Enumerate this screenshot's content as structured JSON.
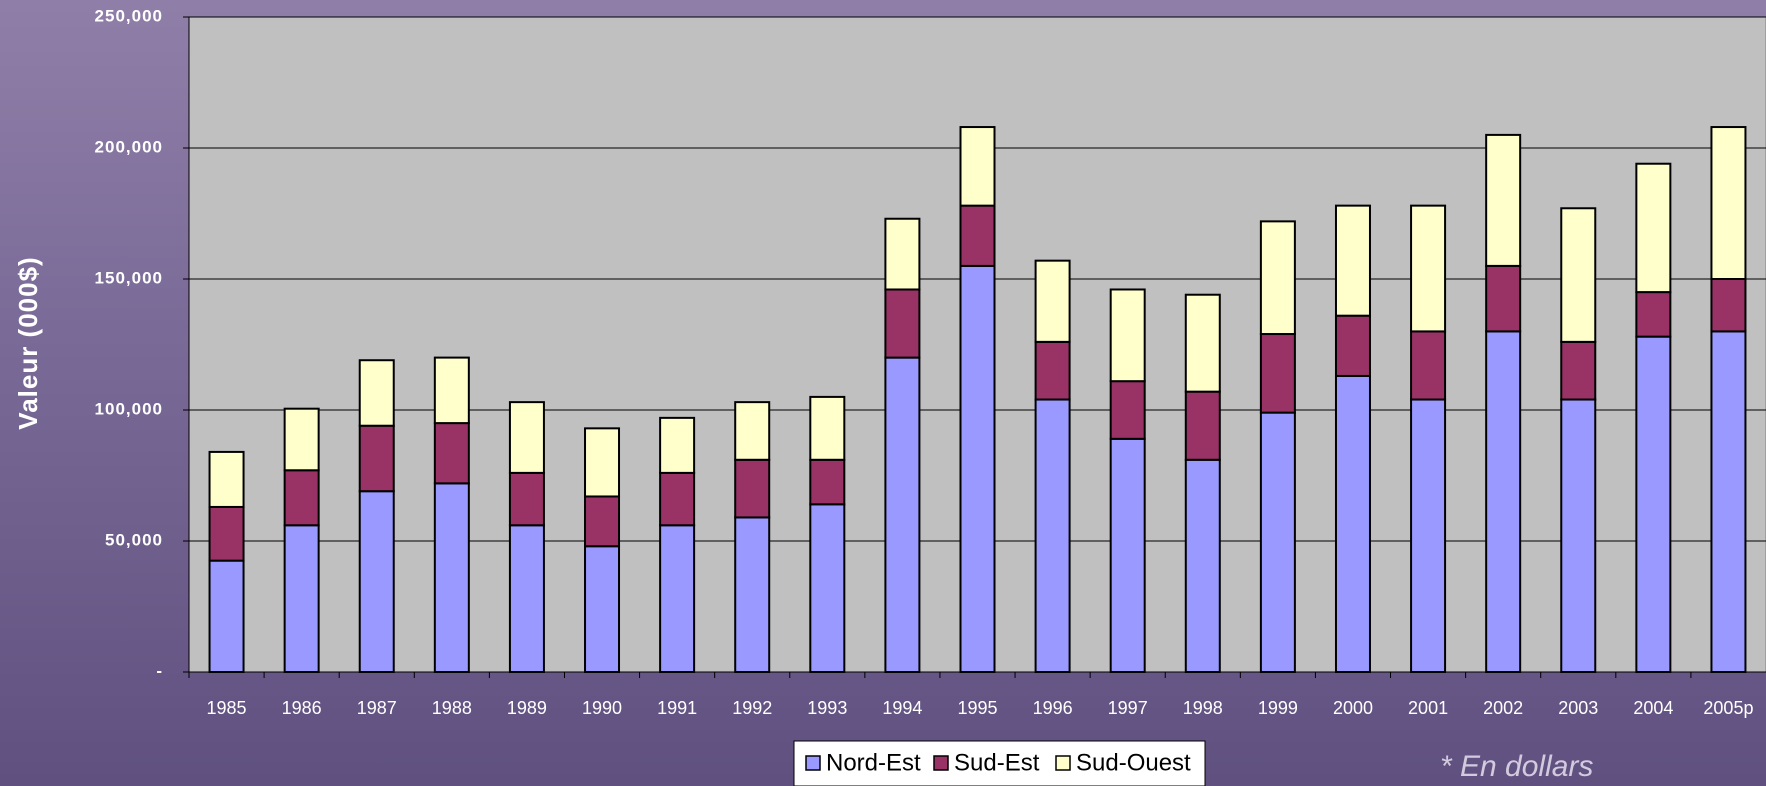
{
  "chart_data": {
    "type": "bar",
    "stacked": true,
    "y_label": "Valeur (000$)",
    "note": "* En dollars",
    "categories": [
      "1985",
      "1986",
      "1987",
      "1988",
      "1989",
      "1990",
      "1991",
      "1992",
      "1993",
      "1994",
      "1995",
      "1996",
      "1997",
      "1998",
      "1999",
      "2000",
      "2001",
      "2002",
      "2003",
      "2004",
      "2005p"
    ],
    "series": [
      {
        "name": "Nord-Est",
        "color": "#9999ff",
        "values": [
          42500,
          56000,
          69000,
          72000,
          56000,
          48000,
          56000,
          59000,
          64000,
          120000,
          155000,
          104000,
          89000,
          81000,
          99000,
          113000,
          104000,
          130000,
          104000,
          128000,
          130000
        ]
      },
      {
        "name": "Sud-Est",
        "color": "#993366",
        "values": [
          20500,
          21000,
          25000,
          23000,
          20000,
          19000,
          20000,
          22000,
          17000,
          26000,
          23000,
          22000,
          22000,
          26000,
          30000,
          23000,
          26000,
          25000,
          22000,
          17000,
          20000
        ]
      },
      {
        "name": "Sud-Ouest",
        "color": "#ffffcc",
        "values": [
          21000,
          23500,
          25000,
          25000,
          27000,
          26000,
          21000,
          22000,
          24000,
          27000,
          30000,
          31000,
          35000,
          37000,
          43000,
          42000,
          48000,
          50000,
          51000,
          49000,
          58000
        ]
      }
    ],
    "ylim": [
      0,
      250000
    ],
    "yticks": [
      {
        "value": 0,
        "label": "-"
      },
      {
        "value": 50000,
        "label": "50,000"
      },
      {
        "value": 100000,
        "label": "100,000"
      },
      {
        "value": 150000,
        "label": "150,000"
      },
      {
        "value": 200000,
        "label": "200,000"
      },
      {
        "value": 250000,
        "label": "250,000"
      }
    ],
    "grid": true,
    "legend": "bottom",
    "plot_background": "#c0c0c0"
  }
}
